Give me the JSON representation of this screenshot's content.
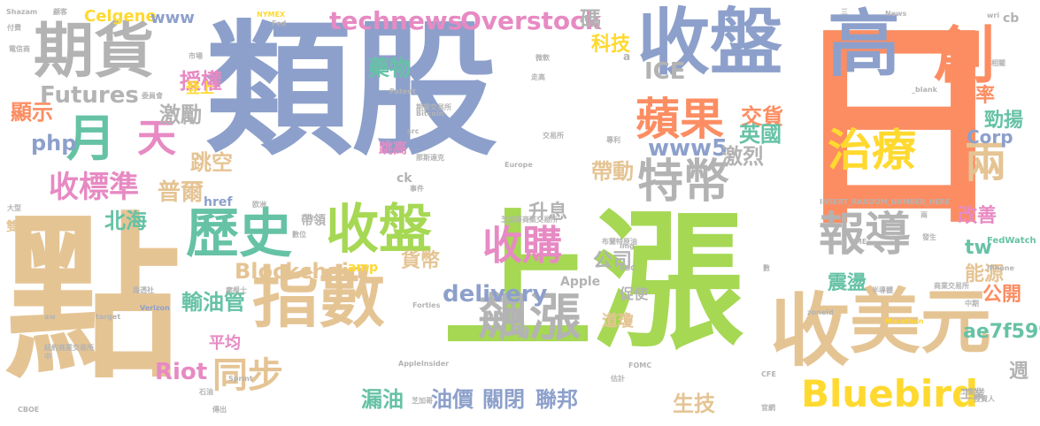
{
  "palette": {
    "blue": "#8DA0CB",
    "orange": "#FC8D62",
    "tan": "#E5C494",
    "green": "#A6D854",
    "pink": "#E78AC3",
    "teal": "#66C2A5",
    "yellow": "#FFD92F",
    "gray": "#B3B3B3"
  },
  "words": [
    {
      "text": "類股",
      "color": "blue"
    },
    {
      "text": "上漲",
      "color": "green"
    },
    {
      "text": "點",
      "color": "tan"
    },
    {
      "text": "日",
      "color": "orange"
    },
    {
      "text": "收盤",
      "color": "blue"
    },
    {
      "text": "高",
      "color": "blue"
    },
    {
      "text": "期貨",
      "color": "gray"
    },
    {
      "text": "創",
      "color": "orange"
    },
    {
      "text": "指數",
      "color": "tan"
    },
    {
      "text": "收",
      "color": "tan"
    },
    {
      "text": "美元",
      "color": "tan"
    },
    {
      "text": "歷史",
      "color": "teal"
    },
    {
      "text": "收盤",
      "color": "green"
    },
    {
      "text": "飆漲",
      "color": "gray"
    },
    {
      "text": "特幣",
      "color": "gray"
    },
    {
      "text": "報導",
      "color": "gray"
    },
    {
      "text": "蘋果",
      "color": "orange"
    },
    {
      "text": "月",
      "color": "teal"
    },
    {
      "text": "天",
      "color": "pink"
    },
    {
      "text": "治療",
      "color": "yellow"
    },
    {
      "text": "收購",
      "color": "pink"
    },
    {
      "text": "同步",
      "color": "tan"
    },
    {
      "text": "Bluebird",
      "color": "yellow"
    },
    {
      "text": "兩",
      "color": "tan"
    },
    {
      "text": "收標準",
      "color": "pink"
    },
    {
      "text": "technews",
      "color": "pink"
    },
    {
      "text": "Overstock",
      "color": "pink"
    },
    {
      "text": "Celgene",
      "color": "yellow"
    },
    {
      "text": "www",
      "color": "blue"
    },
    {
      "text": "ICE",
      "color": "gray"
    },
    {
      "text": "Futures",
      "color": "gray"
    },
    {
      "text": "php",
      "color": "blue"
    },
    {
      "text": "www5",
      "color": "blue"
    },
    {
      "text": "Blockchain",
      "color": "tan"
    },
    {
      "text": "delivery",
      "color": "blue"
    },
    {
      "text": "Riot",
      "color": "pink"
    },
    {
      "text": "Corp",
      "color": "blue"
    },
    {
      "text": "tw",
      "color": "teal"
    },
    {
      "text": "ae7f5990",
      "color": "teal"
    },
    {
      "text": "普爾",
      "color": "tan"
    },
    {
      "text": "北海",
      "color": "teal"
    },
    {
      "text": "跳空",
      "color": "tan"
    },
    {
      "text": "激勵",
      "color": "gray"
    },
    {
      "text": "授權",
      "color": "pink"
    },
    {
      "text": "顯示",
      "color": "orange"
    },
    {
      "text": "藥物",
      "color": "teal"
    },
    {
      "text": "科技",
      "color": "yellow"
    },
    {
      "text": "碼",
      "color": "gray"
    },
    {
      "text": "交貨",
      "color": "orange"
    },
    {
      "text": "英國",
      "color": "teal"
    },
    {
      "text": "帶動",
      "color": "tan"
    },
    {
      "text": "激烈",
      "color": "gray"
    },
    {
      "text": "升息",
      "color": "gray"
    },
    {
      "text": "公司",
      "color": "gray"
    },
    {
      "text": "貨幣",
      "color": "tan"
    },
    {
      "text": "輸油管",
      "color": "teal"
    },
    {
      "text": "機率",
      "color": "orange"
    },
    {
      "text": "勁揚",
      "color": "teal"
    },
    {
      "text": "改善",
      "color": "pink"
    },
    {
      "text": "能源",
      "color": "tan"
    },
    {
      "text": "公開",
      "color": "orange"
    },
    {
      "text": "震盪",
      "color": "teal"
    },
    {
      "text": "漏油",
      "color": "teal"
    },
    {
      "text": "油價",
      "color": "blue"
    },
    {
      "text": "關閉",
      "color": "blue"
    },
    {
      "text": "聯邦",
      "color": "blue"
    },
    {
      "text": "生技",
      "color": "tan"
    },
    {
      "text": "週",
      "color": "gray"
    },
    {
      "text": "道瓊",
      "color": "tan"
    },
    {
      "text": "平均",
      "color": "pink"
    },
    {
      "text": "促使",
      "color": "gray"
    },
    {
      "text": "登上",
      "color": "yellow"
    },
    {
      "text": "跳高",
      "color": "pink"
    },
    {
      "text": "帶領",
      "color": "gray"
    },
    {
      "text": "Apple",
      "color": "gray"
    },
    {
      "text": "amp",
      "color": "yellow"
    },
    {
      "text": "工業",
      "color": "gray"
    },
    {
      "text": "雙雙",
      "color": "tan"
    },
    {
      "text": "ck",
      "color": "gray"
    },
    {
      "text": "href",
      "color": "blue"
    },
    {
      "text": "n",
      "color": "gray"
    },
    {
      "text": "a",
      "color": "gray"
    },
    {
      "text": "cb",
      "color": "gray"
    },
    {
      "text": "FedWatch",
      "color": "teal"
    },
    {
      "text": "INSERT_RANDOM_NUMBER_HERE",
      "color": "gray"
    },
    {
      "text": "Shazam",
      "color": "gray"
    },
    {
      "text": "NYMEX",
      "color": "yellow"
    },
    {
      "text": "Verizon",
      "color": "blue"
    },
    {
      "text": "Marathon",
      "color": "yellow"
    },
    {
      "text": "iPhone",
      "color": "gray"
    },
    {
      "text": "CBOE",
      "color": "gray"
    },
    {
      "text": "Sprint",
      "color": "gray"
    },
    {
      "text": "Europe",
      "color": "gray"
    },
    {
      "text": "AppleInsider",
      "color": "gray"
    },
    {
      "text": "FOMC",
      "color": "gray"
    },
    {
      "text": "Bitcoin",
      "color": "gray"
    },
    {
      "text": "Patent",
      "color": "gray"
    },
    {
      "text": "News",
      "color": "gray"
    },
    {
      "text": "CME",
      "color": "gray"
    },
    {
      "text": "Forties",
      "color": "gray"
    },
    {
      "text": "CFE",
      "color": "gray"
    },
    {
      "text": "_blank",
      "color": "gray"
    },
    {
      "text": "wri",
      "color": "gray"
    },
    {
      "text": "target",
      "color": "gray"
    },
    {
      "text": "aw",
      "color": "gray"
    },
    {
      "text": "BBC",
      "color": "gray"
    },
    {
      "text": "img",
      "color": "gray"
    },
    {
      "text": "src",
      "color": "gray"
    },
    {
      "text": "zoneid",
      "color": "gray"
    },
    {
      "text": "Fed",
      "color": "gray"
    },
    {
      "text": "芝加哥商業交易所",
      "color": "gray"
    },
    {
      "text": "紐約商業交易所",
      "color": "gray"
    },
    {
      "text": "期貨交易所",
      "color": "gray"
    },
    {
      "text": "交易所",
      "color": "gray"
    },
    {
      "text": "商業交易所",
      "color": "gray"
    },
    {
      "text": "布蘭特原油",
      "color": "gray"
    },
    {
      "text": "那斯達克",
      "color": "gray"
    },
    {
      "text": "電信商",
      "color": "gray"
    },
    {
      "text": "市場",
      "color": "gray"
    },
    {
      "text": "委員會",
      "color": "gray"
    },
    {
      "text": "大型",
      "color": "gray"
    },
    {
      "text": "欧洲",
      "color": "gray"
    },
    {
      "text": "半導體",
      "color": "gray"
    },
    {
      "text": "摩根士",
      "color": "gray"
    },
    {
      "text": "石油",
      "color": "gray"
    },
    {
      "text": "路透社",
      "color": "gray"
    },
    {
      "text": "投資人",
      "color": "gray"
    },
    {
      "text": "顧客",
      "color": "gray"
    },
    {
      "text": "付費",
      "color": "gray"
    },
    {
      "text": "數位",
      "color": "gray"
    },
    {
      "text": "專利",
      "color": "gray"
    },
    {
      "text": "微軟",
      "color": "gray"
    },
    {
      "text": "官網",
      "color": "gray"
    },
    {
      "text": "中期",
      "color": "gray"
    },
    {
      "text": "三",
      "color": "gray"
    },
    {
      "text": "兩",
      "color": "gray"
    },
    {
      "text": "數",
      "color": "gray"
    },
    {
      "text": "中",
      "color": "gray"
    },
    {
      "text": "工業",
      "color": "gray"
    },
    {
      "text": "芝加哥",
      "color": "gray"
    },
    {
      "text": "走高",
      "color": "gray"
    },
    {
      "text": "傳出",
      "color": "gray"
    },
    {
      "text": "事件",
      "color": "gray"
    },
    {
      "text": "估計",
      "color": "gray"
    },
    {
      "text": "相關",
      "color": "gray"
    },
    {
      "text": "發生",
      "color": "gray"
    }
  ]
}
